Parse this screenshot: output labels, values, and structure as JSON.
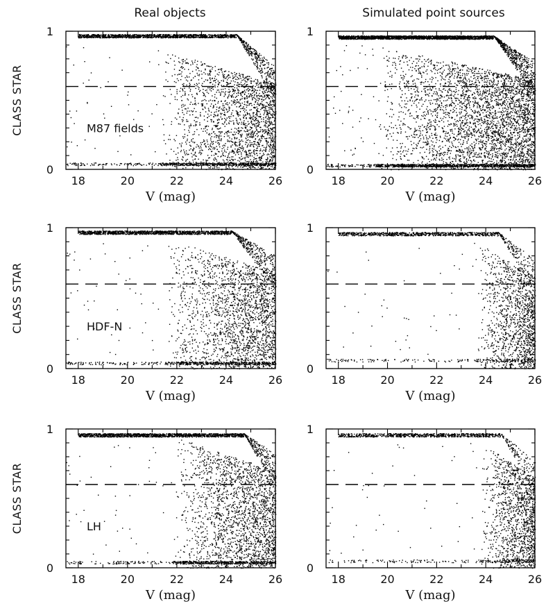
{
  "figure": {
    "column_titles": [
      "Real objects",
      "Simulated point sources"
    ]
  },
  "chart_data": [
    {
      "type": "scatter",
      "panel": "real-M87",
      "annotation": "M87 fields",
      "xlabel": "V (mag)",
      "ylabel": "CLASS STAR",
      "xlim": [
        17.5,
        26
      ],
      "ylim": [
        0,
        1
      ],
      "xticks": [
        18,
        20,
        22,
        24,
        26
      ],
      "yticks": [
        0,
        1
      ],
      "threshold_line": 0.6,
      "series": [
        {
          "color": "#000000",
          "density": {
            "star_branch_y": 0.98,
            "star_fade_mag": 24.4,
            "galaxy_branch_y": 0.03,
            "faint_onset_mag": 21.3,
            "tail_level": 0.62,
            "points": 4500
          }
        }
      ]
    },
    {
      "type": "scatter",
      "panel": "sim-M87",
      "xlabel": "V (mag)",
      "ylabel": "",
      "xlim": [
        17.5,
        26
      ],
      "ylim": [
        0,
        1
      ],
      "xticks": [
        18,
        20,
        22,
        24,
        26
      ],
      "yticks": [
        0,
        1
      ],
      "threshold_line": 0.6,
      "series": [
        {
          "color": "#000000",
          "density": {
            "star_branch_y": 0.97,
            "star_fade_mag": 24.3,
            "galaxy_branch_y": 0.02,
            "faint_onset_mag": 19.5,
            "tail_level": 0.65,
            "points": 7000
          }
        }
      ]
    },
    {
      "type": "scatter",
      "panel": "real-HDF-N",
      "annotation": "HDF-N",
      "xlabel": "V (mag)",
      "ylabel": "CLASS STAR",
      "xlim": [
        17.5,
        26
      ],
      "ylim": [
        0,
        1
      ],
      "xticks": [
        18,
        20,
        22,
        24,
        26
      ],
      "yticks": [
        0,
        1
      ],
      "threshold_line": 0.6,
      "series": [
        {
          "color": "#000000",
          "density": {
            "star_branch_y": 0.98,
            "star_fade_mag": 24.2,
            "galaxy_branch_y": 0.03,
            "faint_onset_mag": 21.5,
            "tail_level": 0.68,
            "points": 4200
          }
        }
      ]
    },
    {
      "type": "scatter",
      "panel": "sim-HDF-N",
      "xlabel": "V (mag)",
      "ylabel": "",
      "xlim": [
        17.5,
        26
      ],
      "ylim": [
        0,
        1
      ],
      "xticks": [
        18,
        20,
        22,
        24,
        26
      ],
      "yticks": [
        0,
        1
      ],
      "threshold_line": 0.6,
      "series": [
        {
          "color": "#000000",
          "density": {
            "star_branch_y": 0.97,
            "star_fade_mag": 24.5,
            "galaxy_branch_y": 0.05,
            "faint_onset_mag": 23.6,
            "tail_level": 0.65,
            "points": 2600
          }
        }
      ]
    },
    {
      "type": "scatter",
      "panel": "real-LH",
      "annotation": "LH",
      "xlabel": "V (mag)",
      "ylabel": "CLASS STAR",
      "xlim": [
        17.5,
        26
      ],
      "ylim": [
        0,
        1
      ],
      "xticks": [
        18,
        20,
        22,
        24,
        26
      ],
      "yticks": [
        0,
        1
      ],
      "threshold_line": 0.6,
      "series": [
        {
          "color": "#000000",
          "density": {
            "star_branch_y": 0.97,
            "star_fade_mag": 24.7,
            "galaxy_branch_y": 0.03,
            "faint_onset_mag": 21.8,
            "tail_level": 0.7,
            "points": 4400
          }
        }
      ]
    },
    {
      "type": "scatter",
      "panel": "sim-LH",
      "xlabel": "V (mag)",
      "ylabel": "",
      "xlim": [
        17.5,
        26
      ],
      "ylim": [
        0,
        1
      ],
      "xticks": [
        18,
        20,
        22,
        24,
        26
      ],
      "yticks": [
        0,
        1
      ],
      "threshold_line": 0.6,
      "series": [
        {
          "color": "#000000",
          "density": {
            "star_branch_y": 0.97,
            "star_fade_mag": 24.6,
            "galaxy_branch_y": 0.04,
            "faint_onset_mag": 23.8,
            "tail_level": 0.65,
            "points": 2600
          }
        }
      ]
    }
  ]
}
